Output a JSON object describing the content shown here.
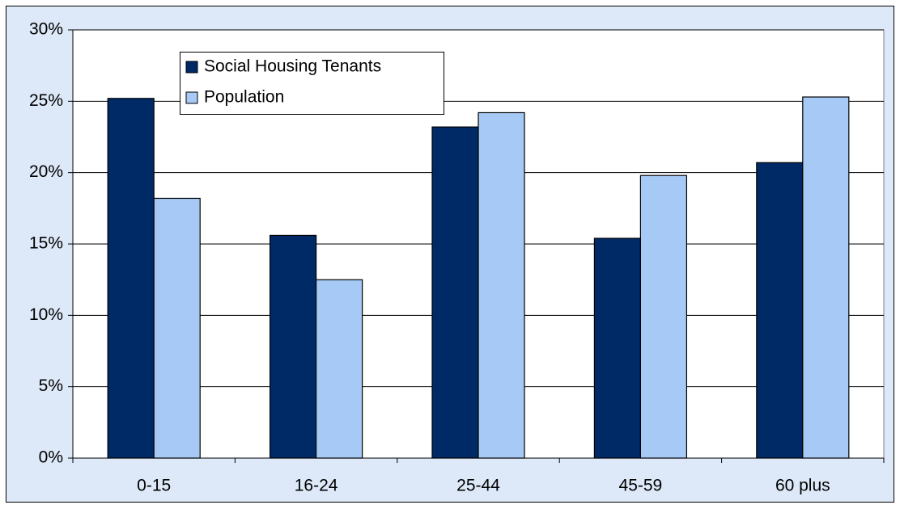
{
  "chart_data": {
    "type": "bar",
    "categories": [
      "0-15",
      "16-24",
      "25-44",
      "45-59",
      "60 plus"
    ],
    "series": [
      {
        "name": "Social Housing Tenants",
        "color": "#002a66",
        "values": [
          25.2,
          15.6,
          23.2,
          15.4,
          20.7
        ]
      },
      {
        "name": "Population",
        "color": "#a6caf5",
        "values": [
          18.2,
          12.5,
          24.2,
          19.8,
          25.3
        ]
      }
    ],
    "ylim": [
      0,
      30
    ],
    "yticks": [
      {
        "value": 0,
        "label": "0%"
      },
      {
        "value": 5,
        "label": "5%"
      },
      {
        "value": 10,
        "label": "10%"
      },
      {
        "value": 15,
        "label": "15%"
      },
      {
        "value": 20,
        "label": "20%"
      },
      {
        "value": 25,
        "label": "25%"
      },
      {
        "value": 30,
        "label": "30%"
      }
    ],
    "grid": true
  }
}
